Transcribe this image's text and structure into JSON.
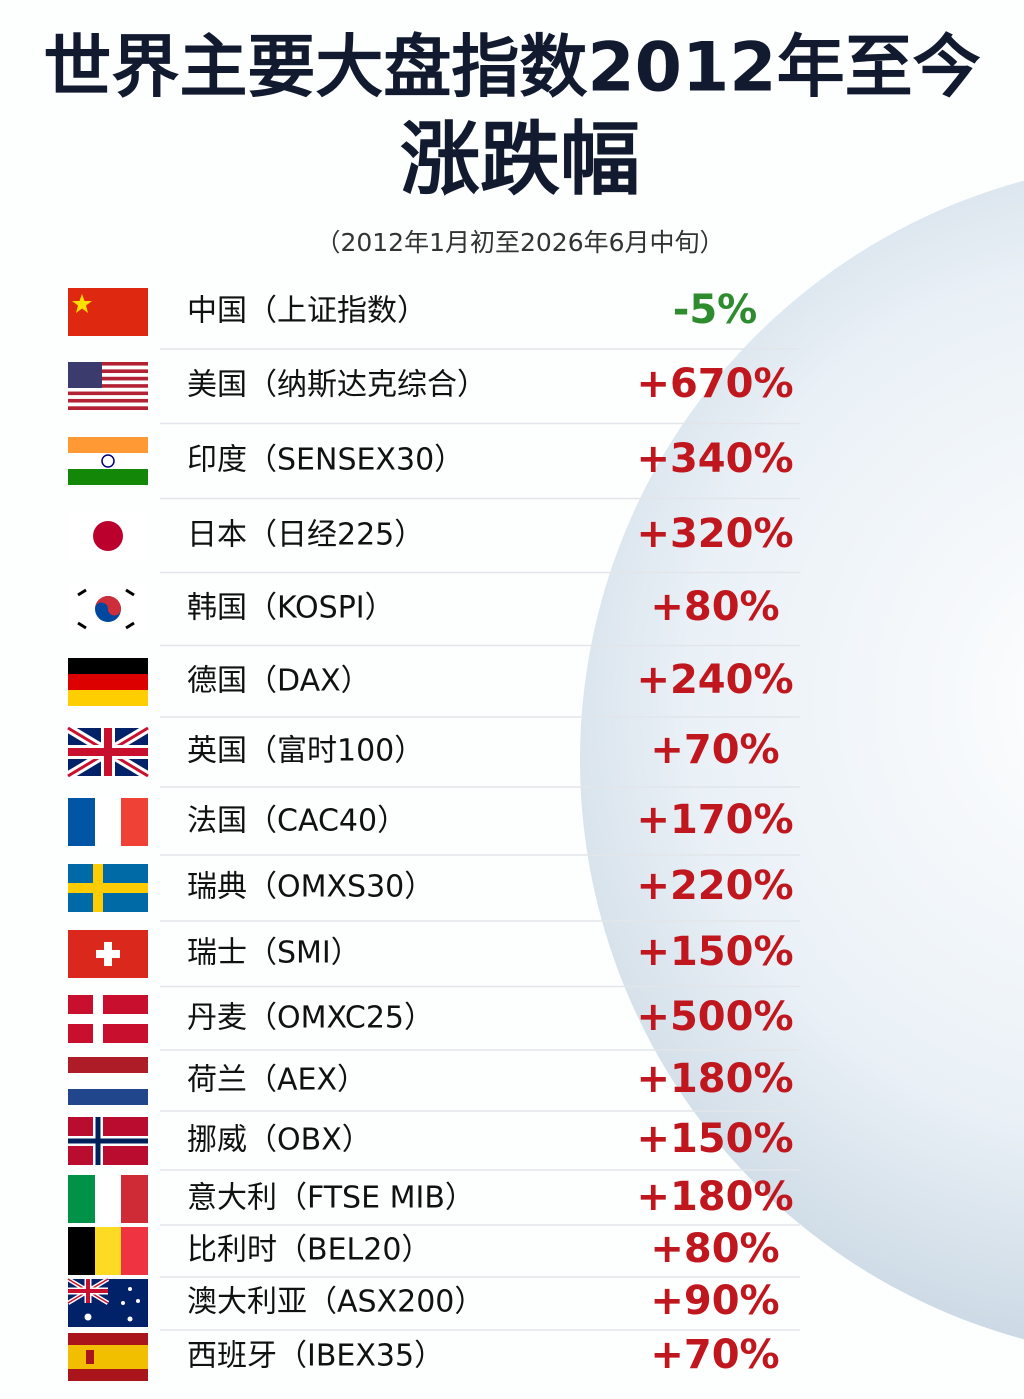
{
  "header": {
    "title": "世界主要大盘指数2012年至今",
    "subtitle": "涨跌幅",
    "period": "（2012年1月初至2026年6月中旬）"
  },
  "rows": [
    {
      "label": "中国（上证指数）",
      "change": "-5%"
    },
    {
      "label": "美国（纳斯达克综合）",
      "change": "+670%"
    },
    {
      "label": "印度（SENSEX30）",
      "change": "+340%"
    },
    {
      "label": "日本（日经225）",
      "change": "+320%"
    },
    {
      "label": "韩国（KOSPI）",
      "change": "+80%"
    },
    {
      "label": "德国（DAX）",
      "change": "+240%"
    },
    {
      "label": "英国（富时100）",
      "change": "+70%"
    },
    {
      "label": "法国（CAC40）",
      "change": "+170%"
    },
    {
      "label": "瑞典（OMXS30）",
      "change": "+220%"
    },
    {
      "label": "瑞士（SMI）",
      "change": "+150%"
    },
    {
      "label": "丹麦（OMXC25）",
      "change": "+500%"
    },
    {
      "label": "荷兰（AEX）",
      "change": "+180%"
    },
    {
      "label": "挪威（OBX）",
      "change": "+150%"
    },
    {
      "label": "意大利（FTSE MIB）",
      "change": "+180%"
    },
    {
      "label": "比利时（BEL20）",
      "change": "+80%"
    },
    {
      "label": "澳大利亚（ASX200）",
      "change": "+90%"
    },
    {
      "label": "西班牙（IBEX35）",
      "change": "+70%"
    }
  ]
}
